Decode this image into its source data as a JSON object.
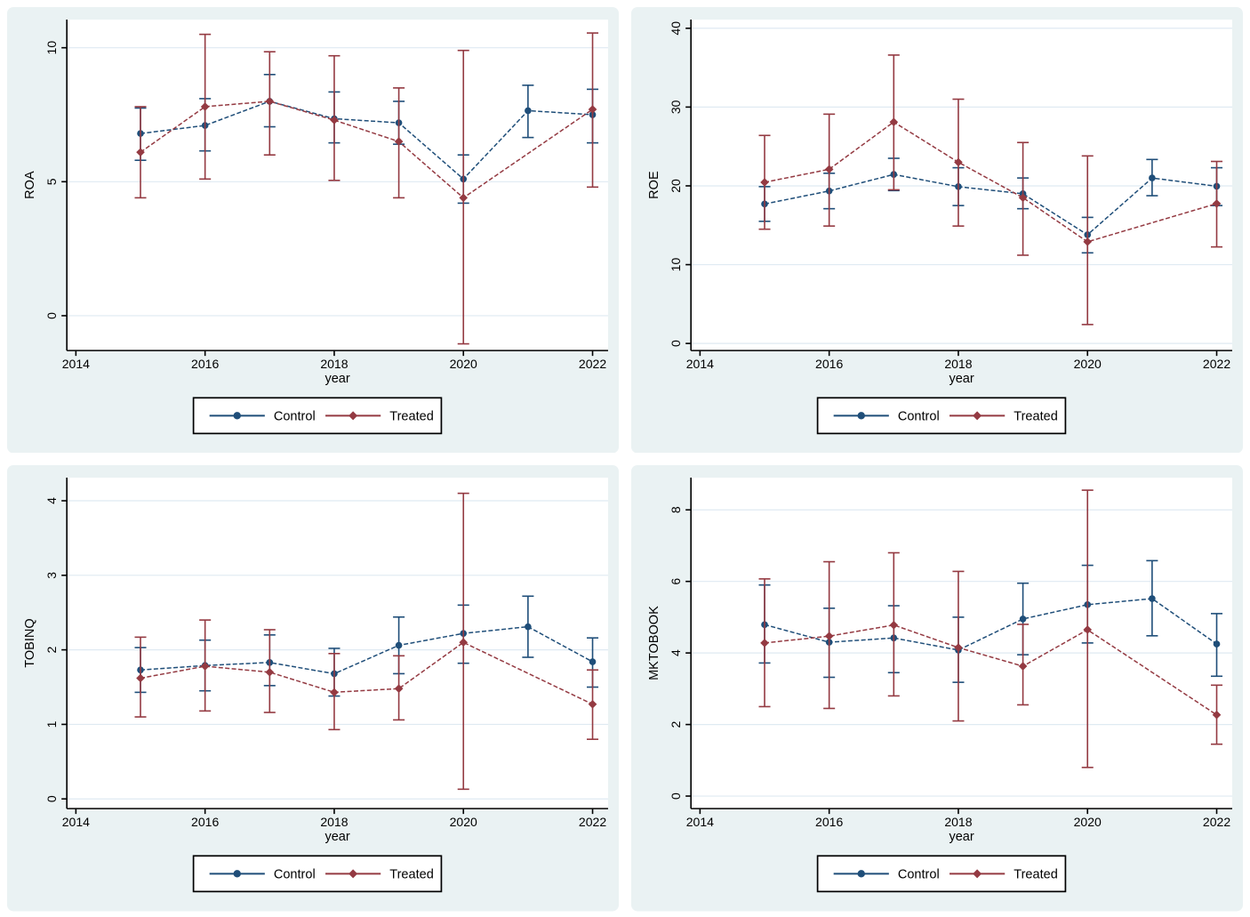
{
  "window": {
    "background": "#ffffff"
  },
  "style": {
    "panel_bg": "#eaf2f3",
    "plot_bg": "#ffffff",
    "grid_color": "#dfeaf2",
    "axis_color": "#000000",
    "text_color": "#000000",
    "legend_bg": "#ffffff",
    "legend_border": "#000000",
    "navy": "#1f4e79",
    "maroon": "#943a42"
  },
  "legend": {
    "items": [
      {
        "label": "Control",
        "color": "#1f4e79",
        "marker": "circle"
      },
      {
        "label": "Treated",
        "color": "#943a42",
        "marker": "diamond"
      }
    ]
  },
  "chart_data": [
    {
      "id": "roa",
      "type": "line",
      "title": "",
      "ylabel": "ROA",
      "xlabel": "year",
      "grid": true,
      "legend_position": "bottom-center",
      "xlim": [
        2013.86,
        2022.24
      ],
      "xticks": [
        2014,
        2016,
        2018,
        2020,
        2022
      ],
      "ylim": [
        -1.3,
        11.05
      ],
      "yticks": [
        0,
        5,
        10
      ],
      "series": [
        {
          "name": "Control",
          "color": "#1f4e79",
          "marker": "circle",
          "x": [
            2015,
            2016,
            2017,
            2018,
            2019,
            2020,
            2021,
            2022
          ],
          "values": [
            6.8,
            7.1,
            8.0,
            7.35,
            7.2,
            5.1,
            7.65,
            7.5
          ],
          "ci_low": [
            5.8,
            6.15,
            7.05,
            6.45,
            6.4,
            4.2,
            6.65,
            6.45
          ],
          "ci_high": [
            7.75,
            8.1,
            9.0,
            8.35,
            8.0,
            6.0,
            8.6,
            8.45
          ]
        },
        {
          "name": "Treated",
          "color": "#943a42",
          "marker": "diamond",
          "x": [
            2015,
            2016,
            2017,
            2018,
            2019,
            2020,
            2022
          ],
          "values": [
            6.1,
            7.8,
            8.0,
            7.3,
            6.5,
            4.4,
            7.7
          ],
          "ci_low": [
            4.4,
            5.1,
            6.0,
            5.05,
            4.4,
            -1.05,
            4.8
          ],
          "ci_high": [
            7.8,
            10.5,
            9.85,
            9.7,
            8.5,
            9.9,
            10.55
          ]
        }
      ]
    },
    {
      "id": "roe",
      "type": "line",
      "title": "",
      "ylabel": "ROE",
      "xlabel": "year",
      "grid": true,
      "legend_position": "bottom-center",
      "xlim": [
        2013.86,
        2022.24
      ],
      "xticks": [
        2014,
        2016,
        2018,
        2020,
        2022
      ],
      "ylim": [
        -0.9,
        41.1
      ],
      "yticks": [
        0,
        10,
        20,
        30,
        40
      ],
      "series": [
        {
          "name": "Control",
          "color": "#1f4e79",
          "marker": "circle",
          "x": [
            2015,
            2016,
            2017,
            2018,
            2019,
            2020,
            2021,
            2022
          ],
          "values": [
            17.7,
            19.35,
            21.45,
            19.9,
            19.0,
            13.8,
            21.0,
            19.95
          ],
          "ci_low": [
            15.5,
            17.1,
            19.4,
            17.5,
            17.1,
            11.5,
            18.75,
            17.5
          ],
          "ci_high": [
            19.9,
            21.6,
            23.5,
            22.3,
            21.0,
            16.0,
            23.35,
            22.3
          ]
        },
        {
          "name": "Treated",
          "color": "#943a42",
          "marker": "diamond",
          "x": [
            2015,
            2016,
            2017,
            2018,
            2019,
            2020,
            2022
          ],
          "values": [
            20.45,
            22.1,
            28.1,
            23.0,
            18.5,
            12.9,
            17.75
          ],
          "ci_low": [
            14.5,
            14.9,
            19.5,
            14.9,
            11.2,
            2.4,
            12.25
          ],
          "ci_high": [
            26.4,
            29.1,
            36.6,
            31.0,
            25.5,
            23.8,
            23.1
          ]
        }
      ]
    },
    {
      "id": "tobinq",
      "type": "line",
      "title": "",
      "ylabel": "TOBINQ",
      "xlabel": "year",
      "grid": true,
      "legend_position": "bottom-center",
      "xlim": [
        2013.86,
        2022.24
      ],
      "xticks": [
        2014,
        2016,
        2018,
        2020,
        2022
      ],
      "ylim": [
        -0.13,
        4.31
      ],
      "yticks": [
        0,
        1,
        2,
        3,
        4
      ],
      "series": [
        {
          "name": "Control",
          "color": "#1f4e79",
          "marker": "circle",
          "x": [
            2015,
            2016,
            2017,
            2018,
            2019,
            2020,
            2021,
            2022
          ],
          "values": [
            1.73,
            1.79,
            1.83,
            1.68,
            2.06,
            2.22,
            2.31,
            1.84
          ],
          "ci_low": [
            1.43,
            1.45,
            1.52,
            1.38,
            1.68,
            1.82,
            1.9,
            1.5
          ],
          "ci_high": [
            2.03,
            2.13,
            2.2,
            2.02,
            2.44,
            2.6,
            2.72,
            2.16
          ]
        },
        {
          "name": "Treated",
          "color": "#943a42",
          "marker": "diamond",
          "x": [
            2015,
            2016,
            2017,
            2018,
            2019,
            2020,
            2022
          ],
          "values": [
            1.62,
            1.78,
            1.7,
            1.43,
            1.48,
            2.1,
            1.27
          ],
          "ci_low": [
            1.1,
            1.18,
            1.16,
            0.93,
            1.06,
            0.13,
            0.8
          ],
          "ci_high": [
            2.17,
            2.4,
            2.27,
            1.95,
            1.92,
            4.1,
            1.73
          ]
        }
      ]
    },
    {
      "id": "mktobook",
      "type": "line",
      "title": "",
      "ylabel": "MKTOBOOK",
      "xlabel": "year",
      "grid": true,
      "legend_position": "bottom-center",
      "xlim": [
        2013.86,
        2022.24
      ],
      "xticks": [
        2014,
        2016,
        2018,
        2020,
        2022
      ],
      "ylim": [
        -0.35,
        8.9
      ],
      "yticks": [
        0,
        2,
        4,
        6,
        8
      ],
      "series": [
        {
          "name": "Control",
          "color": "#1f4e79",
          "marker": "circle",
          "x": [
            2015,
            2016,
            2017,
            2018,
            2019,
            2020,
            2021,
            2022
          ],
          "values": [
            4.79,
            4.3,
            4.42,
            4.08,
            4.95,
            5.35,
            5.52,
            4.25
          ],
          "ci_low": [
            3.72,
            3.32,
            3.45,
            3.18,
            3.95,
            4.28,
            4.48,
            3.35
          ],
          "ci_high": [
            5.9,
            5.25,
            5.32,
            5.0,
            5.95,
            6.45,
            6.58,
            5.1
          ]
        },
        {
          "name": "Treated",
          "color": "#943a42",
          "marker": "diamond",
          "x": [
            2015,
            2016,
            2017,
            2018,
            2019,
            2020,
            2022
          ],
          "values": [
            4.28,
            4.47,
            4.78,
            4.15,
            3.63,
            4.65,
            2.27
          ],
          "ci_low": [
            2.5,
            2.45,
            2.8,
            2.1,
            2.55,
            0.8,
            1.45
          ],
          "ci_high": [
            6.07,
            6.55,
            6.8,
            6.28,
            4.8,
            8.55,
            3.1
          ]
        }
      ]
    }
  ]
}
